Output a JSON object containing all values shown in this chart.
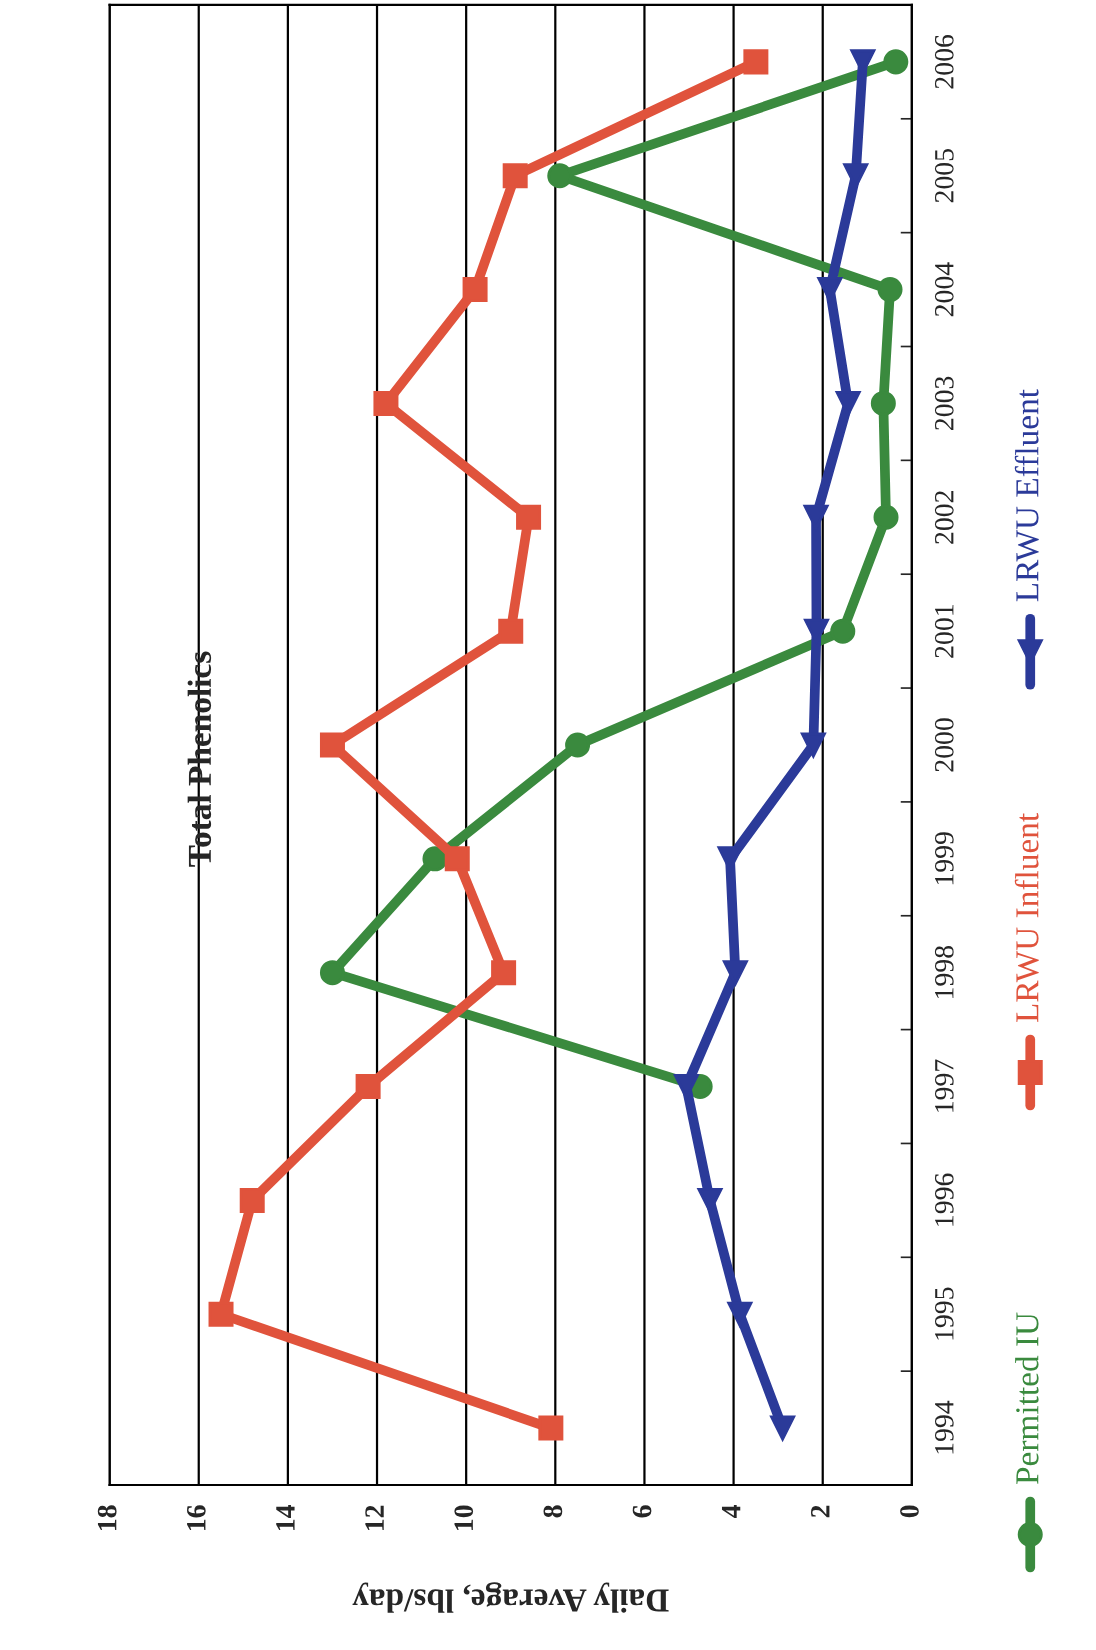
{
  "chart_data": {
    "type": "line",
    "title": "Total Phenolics",
    "xlabel": "Daily Average, lbs/day",
    "orientation": "horizontal",
    "categories": [
      "2006",
      "2005",
      "2004",
      "2003",
      "2002",
      "2001",
      "2000",
      "1999",
      "1998",
      "1997",
      "1996",
      "1995",
      "1994"
    ],
    "series": [
      {
        "name": "Permitted IU",
        "color": "#3a8a3e",
        "marker": "circle",
        "values": [
          0.36,
          7.9,
          0.49,
          0.64,
          0.58,
          1.55,
          7.5,
          10.7,
          13.0,
          4.75,
          null,
          null,
          null
        ]
      },
      {
        "name": "LRWU Influent",
        "color": "#e0533c",
        "marker": "square",
        "values": [
          3.5,
          8.9,
          9.8,
          11.8,
          8.6,
          9.0,
          13.0,
          10.2,
          9.16,
          12.2,
          14.8,
          15.5,
          8.1
        ]
      },
      {
        "name": "LRWU Effluent",
        "color": "#2b3a99",
        "marker": "triangle",
        "values": [
          1.1,
          1.26,
          1.84,
          1.43,
          2.15,
          2.14,
          2.21,
          4.08,
          3.96,
          5.06,
          4.53,
          3.86,
          2.9
        ]
      }
    ],
    "xlim": [
      18,
      0
    ],
    "xticks": [
      18,
      16,
      14,
      12,
      10,
      8,
      6,
      4,
      2,
      0
    ],
    "grid": "x",
    "legend": "right"
  }
}
